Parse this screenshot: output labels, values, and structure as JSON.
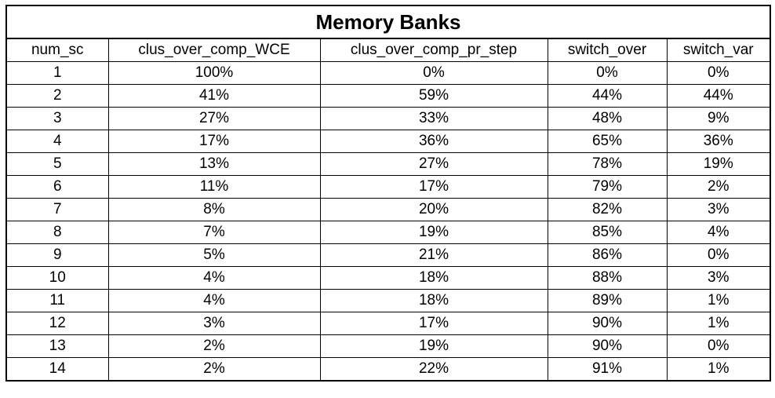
{
  "chart_data": {
    "type": "table",
    "title": "Memory Banks",
    "columns": [
      "num_sc",
      "clus_over_comp_WCE",
      "clus_over_comp_pr_step",
      "switch_over",
      "switch_var"
    ],
    "rows": [
      [
        "1",
        "100%",
        "0%",
        "0%",
        "0%"
      ],
      [
        "2",
        "41%",
        "59%",
        "44%",
        "44%"
      ],
      [
        "3",
        "27%",
        "33%",
        "48%",
        "9%"
      ],
      [
        "4",
        "17%",
        "36%",
        "65%",
        "36%"
      ],
      [
        "5",
        "13%",
        "27%",
        "78%",
        "19%"
      ],
      [
        "6",
        "11%",
        "17%",
        "79%",
        "2%"
      ],
      [
        "7",
        "8%",
        "20%",
        "82%",
        "3%"
      ],
      [
        "8",
        "7%",
        "19%",
        "85%",
        "4%"
      ],
      [
        "9",
        "5%",
        "21%",
        "86%",
        "0%"
      ],
      [
        "10",
        "4%",
        "18%",
        "88%",
        "3%"
      ],
      [
        "11",
        "4%",
        "18%",
        "89%",
        "1%"
      ],
      [
        "12",
        "3%",
        "17%",
        "90%",
        "1%"
      ],
      [
        "13",
        "2%",
        "19%",
        "90%",
        "0%"
      ],
      [
        "14",
        "2%",
        "22%",
        "91%",
        "1%"
      ]
    ]
  }
}
